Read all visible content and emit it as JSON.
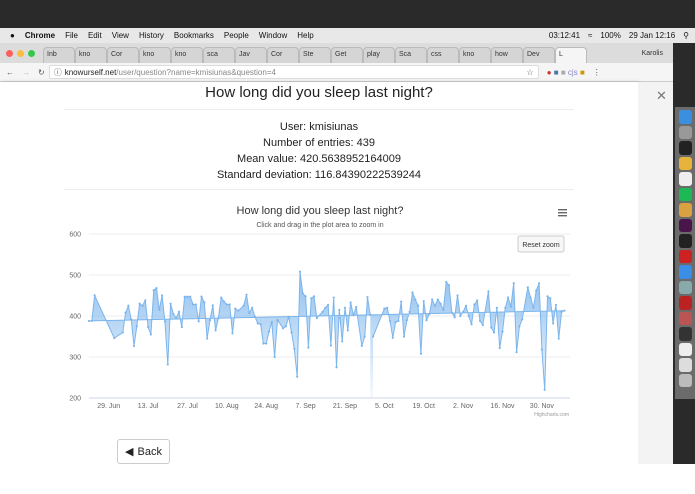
{
  "menubar": {
    "app": "Chrome",
    "items": [
      "File",
      "Edit",
      "View",
      "History",
      "Bookmarks",
      "People",
      "Window",
      "Help"
    ],
    "clock": "03:12:41",
    "battery": "100%",
    "date": "29 Jan 12:16"
  },
  "tabs": [
    "Inb",
    "kno",
    "Cor",
    "kno",
    "kno",
    "sca",
    "Jav",
    "Cor",
    "Ste",
    "Get",
    "play",
    "Sca",
    "css",
    "kno",
    "how",
    "Dev",
    "L"
  ],
  "profile": "Karolis",
  "address": {
    "domain": "knowurself.net",
    "path": "/user/question?name=kmisiunas&question=4"
  },
  "page": {
    "title": "How long did you sleep last night?",
    "user": "User: kmisiunas",
    "entries": "Number of entries: 439",
    "mean": "Mean value: 420.5638952164009",
    "sd": "Standard deviation: 116.84390222539244",
    "back": "Back"
  },
  "chart_data": {
    "type": "area",
    "title": "How long did you sleep last night?",
    "subtitle": "Click and drag in the plot area to zoom in",
    "reset_zoom": "Reset zoom",
    "credits": "Highcharts.com",
    "color": "#7cb5ec",
    "ylim": [
      200,
      600
    ],
    "yticks": [
      "200",
      "300",
      "400",
      "500",
      "600"
    ],
    "xrange": [
      "06-22",
      "12-10"
    ],
    "xticks": [
      {
        "label": "29. Jun",
        "date": "06-29"
      },
      {
        "label": "13. Jul",
        "date": "07-13"
      },
      {
        "label": "27. Jul",
        "date": "07-27"
      },
      {
        "label": "10. Aug",
        "date": "08-10"
      },
      {
        "label": "24. Aug",
        "date": "08-24"
      },
      {
        "label": "7. Sep",
        "date": "09-07"
      },
      {
        "label": "21. Sep",
        "date": "09-21"
      },
      {
        "label": "5. Oct",
        "date": "10-05"
      },
      {
        "label": "19. Oct",
        "date": "10-19"
      },
      {
        "label": "2. Nov",
        "date": "11-02"
      },
      {
        "label": "16. Nov",
        "date": "11-16"
      },
      {
        "label": "30. Nov",
        "date": "11-30"
      }
    ],
    "dates_by_month": {
      "06": [
        22,
        23,
        24
      ],
      "07": [
        1,
        4,
        5,
        6,
        7,
        8,
        9,
        10,
        11,
        12,
        13,
        14,
        15,
        16,
        17,
        18,
        19,
        20,
        21,
        22,
        23,
        24,
        25,
        26,
        27,
        28,
        29,
        30,
        31
      ],
      "08": [
        1,
        2,
        3,
        4,
        5,
        6,
        7,
        8,
        9,
        10,
        11,
        12,
        13,
        14,
        16,
        17,
        18,
        19,
        20,
        21,
        22,
        23,
        24,
        25,
        26,
        27,
        28,
        30,
        31
      ],
      "09": [
        1,
        2,
        3,
        4,
        5,
        6,
        7,
        8,
        9,
        10,
        11,
        13,
        14,
        15,
        16,
        17,
        18,
        19,
        20,
        21,
        22,
        23,
        24,
        25,
        27,
        28,
        29,
        30
      ],
      "10": [
        1,
        5,
        6,
        7,
        8,
        9,
        10,
        11,
        12,
        13,
        14,
        15,
        16,
        17,
        18,
        19,
        20,
        21,
        22,
        23,
        24,
        25,
        26,
        27,
        28,
        29,
        30,
        31
      ],
      "11": [
        1,
        2,
        3,
        4,
        5,
        6,
        7,
        8,
        9,
        11,
        12,
        13,
        14,
        15,
        16,
        17,
        18,
        19,
        20,
        21,
        22,
        23,
        25,
        26,
        27,
        28,
        29,
        30
      ],
      "12": [
        1,
        2,
        3,
        4,
        5,
        6,
        7,
        8
      ]
    },
    "values": [
      350,
      418,
      420,
      388,
      347,
      385,
      388,
      435,
      350,
      390,
      410,
      457,
      440,
      425,
      308,
      436,
      390,
      405,
      440,
      425,
      440,
      430,
      415,
      483,
      475,
      408,
      397,
      450,
      400,
      410,
      425,
      400,
      380,
      428,
      438,
      388,
      378,
      460,
      372,
      360,
      420,
      322,
      362,
      420,
      445,
      423,
      480,
      312,
      375,
      392,
      470,
      445,
      420,
      462,
      480,
      318,
      220,
      448,
      443,
      382,
      427,
      345,
      410,
      413,
      388,
      388,
      450,
      346,
      360,
      408,
      425,
      392,
      327,
      375,
      430,
      425,
      438,
      373,
      355,
      463,
      468,
      415,
      450,
      387,
      282,
      430,
      405,
      395,
      410,
      373,
      447,
      447,
      447,
      428,
      428,
      387,
      447,
      433,
      345,
      390,
      426,
      365,
      395,
      445,
      435,
      428,
      428,
      358,
      418,
      413,
      425,
      452,
      407,
      420,
      398,
      382,
      380,
      333,
      333,
      362,
      385,
      300,
      390,
      370,
      375,
      398,
      360,
      320,
      252,
      508,
      455,
      448,
      323,
      443,
      448,
      395,
      410,
      420,
      427,
      328,
      445,
      275,
      415,
      338,
      420,
      365,
      433,
      402,
      422,
      327,
      350,
      446,
      403
    ]
  }
}
